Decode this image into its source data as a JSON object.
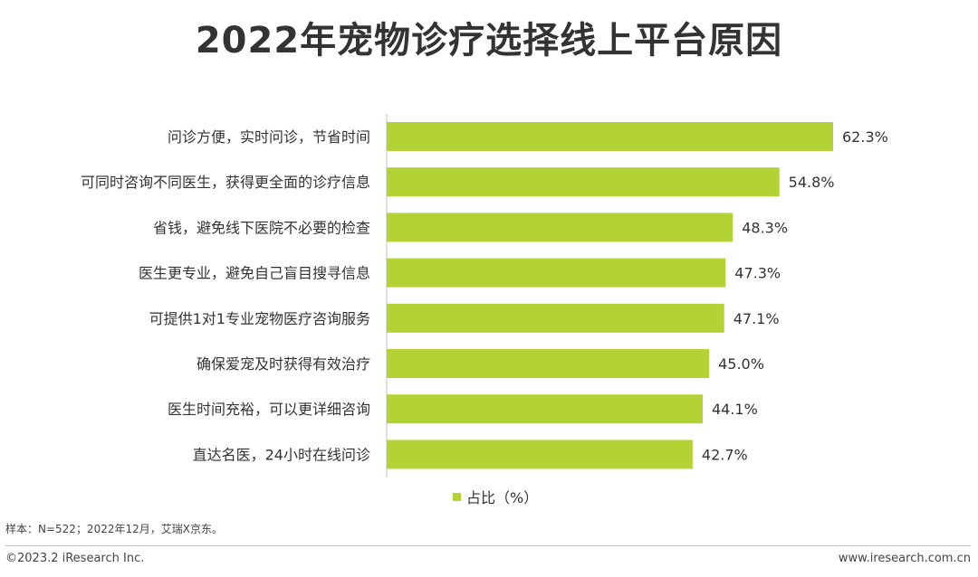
{
  "title": "2022年宠物诊疗选择线上平台原因",
  "chart_data": {
    "type": "bar",
    "orientation": "horizontal",
    "categories": [
      "问诊方便，实时问诊，节省时间",
      "可同时咨询不同医生，获得更全面的诊疗信息",
      "省钱，避免线下医院不必要的检查",
      "医生更专业，避免自己盲目搜寻信息",
      "可提供1对1专业宠物医疗咨询服务",
      "确保爱宠及时获得有效治疗",
      "医生时间充裕，可以更详细咨询",
      "直达名医，24小时在线问诊"
    ],
    "series": [
      {
        "name": "占比（%）",
        "values": [
          62.3,
          54.8,
          48.3,
          47.3,
          47.1,
          45.0,
          44.1,
          42.7
        ],
        "labels": [
          "62.3%",
          "54.8%",
          "48.3%",
          "47.3%",
          "47.1%",
          "45.0%",
          "44.1%",
          "42.7%"
        ]
      }
    ],
    "color": "#b2d235",
    "xlim": [
      0,
      62.3
    ],
    "grid": false,
    "legend": "bottom-center"
  },
  "note": "样本：N=522；2022年12月，艾瑞X京东。",
  "footer": {
    "copyright": "©2023.2 iResearch Inc.",
    "website": "www.iresearch.com.cn"
  }
}
